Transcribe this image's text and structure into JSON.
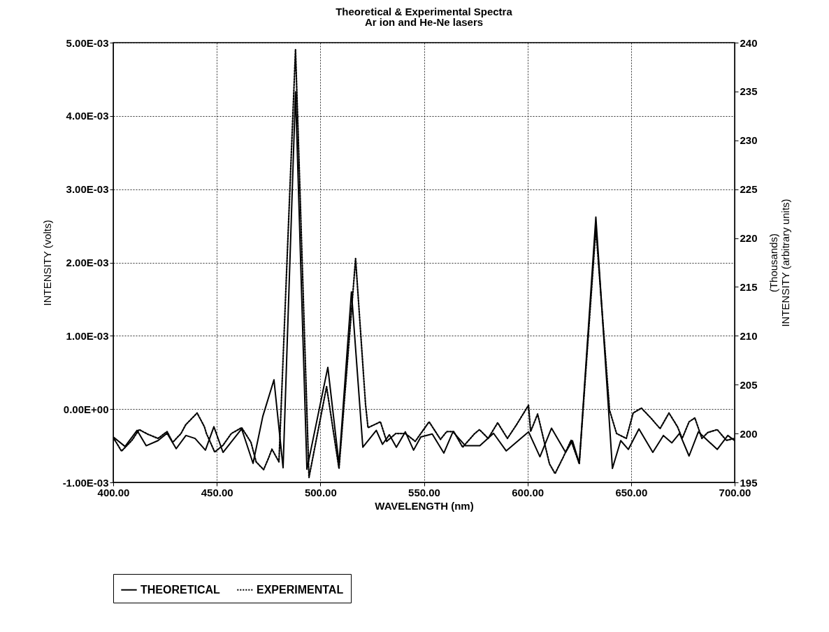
{
  "chart_data": {
    "type": "line",
    "title": "Theoretical & Experimental Spectra",
    "subtitle": "Ar ion and He-Ne lasers",
    "xlabel": "WAVELENGTH (nm)",
    "ylabel": "INTENSITY (volts)",
    "y2label": [
      "(Thousands)",
      "INTENSITY (arbitrary units)"
    ],
    "xlim": [
      400,
      700
    ],
    "xticks": [
      {
        "value": 400,
        "label": "400.00"
      },
      {
        "value": 450,
        "label": "450.00"
      },
      {
        "value": 500,
        "label": "500.00"
      },
      {
        "value": 550,
        "label": "550.00"
      },
      {
        "value": 600,
        "label": "600.00"
      },
      {
        "value": 650,
        "label": "650.00"
      },
      {
        "value": 700,
        "label": "700.00"
      }
    ],
    "ylim": [
      -0.001,
      0.005
    ],
    "yticks": [
      {
        "value": -0.001,
        "label": "-1.00E-03"
      },
      {
        "value": 0,
        "label": "0.00E+00"
      },
      {
        "value": 0.001,
        "label": "1.00E-03"
      },
      {
        "value": 0.002,
        "label": "2.00E-03"
      },
      {
        "value": 0.003,
        "label": "3.00E-03"
      },
      {
        "value": 0.004,
        "label": "4.00E-03"
      },
      {
        "value": 0.005,
        "label": "5.00E-03"
      }
    ],
    "y2lim": [
      195,
      240
    ],
    "y2ticks": [
      195,
      200,
      205,
      210,
      215,
      220,
      225,
      230,
      235,
      240
    ],
    "grid": true,
    "legend": "bottom",
    "marker": "none",
    "series": [
      {
        "name": "THEORETICAL",
        "color": "#000000",
        "line_style": "solid",
        "x": [
          400,
          405.7,
          411.5,
          415.9,
          421.6,
          426,
          430.4,
          435.1,
          439.5,
          444.5,
          448.6,
          453,
          462,
          467.5,
          472.2,
          477.6,
          482,
          488,
          493.5,
          503.6,
          509,
          515,
          520.5,
          527,
          530,
          533.3,
          536.7,
          541,
          545,
          548.5,
          554,
          559.6,
          564,
          570,
          577,
          583.6,
          589.7,
          600.5,
          606,
          611.6,
          618.4,
          621.7,
          625,
          633,
          641,
          645,
          648.7,
          653.8,
          660.5,
          665.6,
          669.7,
          673.4,
          678,
          682.5,
          691.6,
          696.7,
          700
        ],
        "values": [
          -0.00038,
          -0.00051,
          -0.00029,
          -0.0005,
          -0.00043,
          -0.00033,
          -0.00054,
          -0.00036,
          -0.0004,
          -0.00056,
          -0.00024,
          -0.00059,
          -0.00027,
          -0.00074,
          -0.0001,
          0.0004,
          -0.0008,
          0.00433,
          -0.00082,
          0.00057,
          -0.00075,
          0.0016,
          -0.00052,
          -0.00029,
          -0.00048,
          -0.00035,
          -0.00052,
          -0.00031,
          -0.00056,
          -0.00038,
          -0.00034,
          -0.0006,
          -0.00031,
          -0.0005,
          -0.0005,
          -0.00033,
          -0.00057,
          -0.00031,
          -0.00065,
          -0.00026,
          -0.00059,
          -0.00043,
          -0.00074,
          0.00262,
          -0.00081,
          -0.00043,
          -0.00055,
          -0.00027,
          -0.00059,
          -0.00036,
          -0.00046,
          -0.00033,
          -0.00064,
          -0.00031,
          -0.00055,
          -0.00036,
          -0.00043
        ]
      },
      {
        "name": "EXPERIMENTAL",
        "color": "#000000",
        "line_style": "dotted",
        "axis": "y2",
        "x": [
          400,
          404,
          409,
          412.5,
          417,
          421.6,
          426,
          428.7,
          432.7,
          435,
          440.5,
          444,
          445,
          449,
          453,
          457,
          462,
          466.5,
          469,
          472.6,
          475,
          476.6,
          480,
          488,
          494.5,
          503,
          509,
          517,
          521.8,
          523,
          529,
          532,
          536.4,
          541,
          545.8,
          552.5,
          558,
          561,
          564.4,
          568.7,
          574.5,
          576.8,
          581,
          585.6,
          590.3,
          594.7,
          600.5,
          601.5,
          604.9,
          610.6,
          613.3,
          617.3,
          621,
          625,
          633,
          639.6,
          643,
          647.7,
          651,
          655,
          659.5,
          664,
          668.3,
          672.4,
          674.7,
          678,
          680.8,
          684.2,
          687,
          691.6,
          696,
          700
        ],
        "values": [
          199.6,
          198.2,
          199.3,
          200.4,
          199.9,
          199.5,
          200.2,
          199.1,
          200,
          200.9,
          202.1,
          200.7,
          200,
          198.1,
          198.8,
          200,
          200.6,
          199.1,
          197.1,
          196.3,
          197.5,
          198.4,
          197.1,
          239.3,
          195.5,
          204.8,
          196.4,
          217.9,
          203,
          200.6,
          201.2,
          199.2,
          200,
          200,
          199.2,
          201.2,
          199.4,
          200.2,
          200.2,
          198.6,
          200,
          200.4,
          199.5,
          201.1,
          199.5,
          200.9,
          202.9,
          200.2,
          202,
          196.9,
          195.9,
          197.6,
          199.3,
          196.9,
          221,
          202.4,
          200,
          199.5,
          202.1,
          202.6,
          201.6,
          200.5,
          202.1,
          200.7,
          199.5,
          201.2,
          201.6,
          199.5,
          200.1,
          200.4,
          199.3,
          199.5
        ]
      }
    ]
  }
}
